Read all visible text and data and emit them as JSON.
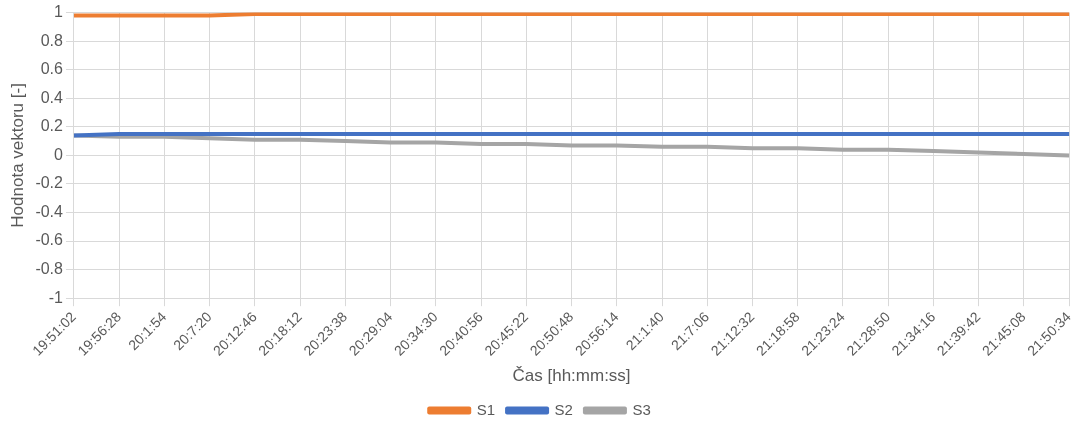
{
  "chart_data": {
    "type": "line",
    "xlabel": "Čas [hh:mm:ss]",
    "ylabel": "Hodnota vektoru [-]",
    "categories": [
      "19:51:02",
      "19:56:28",
      "20:1:54",
      "20:7:20",
      "20:12:46",
      "20:18:12",
      "20:23:38",
      "20:29:04",
      "20:34:30",
      "20:40:56",
      "20:45:22",
      "20:50:48",
      "20:56:14",
      "21:1:40",
      "21:7:06",
      "21:12:32",
      "21:18:58",
      "21:23:24",
      "21:28:50",
      "21:34:16",
      "21:39:42",
      "21:45:08",
      "21:50:34"
    ],
    "series": [
      {
        "name": "S1",
        "color": "#ed7d31",
        "values": [
          0.98,
          0.98,
          0.98,
          0.98,
          0.99,
          0.99,
          0.99,
          0.99,
          0.99,
          0.99,
          0.99,
          0.99,
          0.99,
          0.99,
          0.99,
          0.99,
          0.99,
          0.99,
          0.99,
          0.99,
          0.99,
          0.99,
          0.99
        ]
      },
      {
        "name": "S2",
        "color": "#4472c4",
        "values": [
          0.14,
          0.15,
          0.15,
          0.15,
          0.15,
          0.15,
          0.15,
          0.15,
          0.15,
          0.15,
          0.15,
          0.15,
          0.15,
          0.15,
          0.15,
          0.15,
          0.15,
          0.15,
          0.15,
          0.15,
          0.15,
          0.15,
          0.15
        ]
      },
      {
        "name": "S3",
        "color": "#a5a5a5",
        "values": [
          0.14,
          0.13,
          0.13,
          0.12,
          0.11,
          0.11,
          0.1,
          0.09,
          0.09,
          0.08,
          0.08,
          0.07,
          0.07,
          0.06,
          0.06,
          0.05,
          0.05,
          0.04,
          0.04,
          0.03,
          0.02,
          0.01,
          0.0
        ]
      }
    ],
    "ylim": [
      -1,
      1
    ],
    "yticks": [
      -1,
      -0.8,
      -0.6,
      -0.4,
      -0.2,
      0,
      0.2,
      0.4,
      0.6,
      0.8,
      1
    ],
    "grid": true,
    "legend": "bottom",
    "marker": "none",
    "line_style": "solid"
  }
}
